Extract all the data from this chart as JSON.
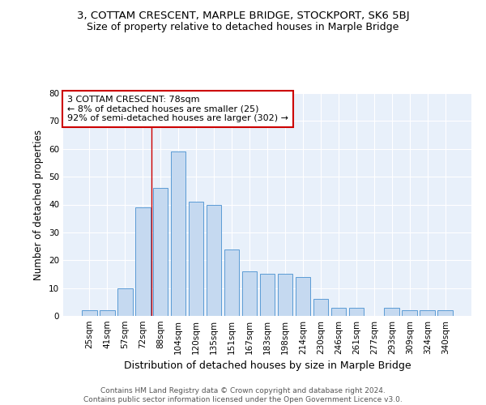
{
  "title": "3, COTTAM CRESCENT, MARPLE BRIDGE, STOCKPORT, SK6 5BJ",
  "subtitle": "Size of property relative to detached houses in Marple Bridge",
  "xlabel": "Distribution of detached houses by size in Marple Bridge",
  "ylabel": "Number of detached properties",
  "footer_line1": "Contains HM Land Registry data © Crown copyright and database right 2024.",
  "footer_line2": "Contains public sector information licensed under the Open Government Licence v3.0.",
  "categories": [
    "25sqm",
    "41sqm",
    "57sqm",
    "72sqm",
    "88sqm",
    "104sqm",
    "120sqm",
    "135sqm",
    "151sqm",
    "167sqm",
    "183sqm",
    "198sqm",
    "214sqm",
    "230sqm",
    "246sqm",
    "261sqm",
    "277sqm",
    "293sqm",
    "309sqm",
    "324sqm",
    "340sqm"
  ],
  "values": [
    2,
    2,
    10,
    39,
    46,
    59,
    41,
    40,
    24,
    16,
    15,
    15,
    14,
    6,
    3,
    3,
    0,
    3,
    2,
    2,
    2
  ],
  "bar_color": "#c5d9f0",
  "bar_edge_color": "#5b9bd5",
  "background_color": "#e8f0fa",
  "grid_color": "#ffffff",
  "annotation_text": "3 COTTAM CRESCENT: 78sqm\n← 8% of detached houses are smaller (25)\n92% of semi-detached houses are larger (302) →",
  "annotation_box_color": "#ffffff",
  "annotation_box_edge_color": "#cc0000",
  "vline_x": 3.5,
  "vline_color": "#cc0000",
  "ylim": [
    0,
    80
  ],
  "yticks": [
    0,
    10,
    20,
    30,
    40,
    50,
    60,
    70,
    80
  ],
  "title_fontsize": 9.5,
  "subtitle_fontsize": 9,
  "xlabel_fontsize": 9,
  "ylabel_fontsize": 8.5,
  "tick_fontsize": 7.5,
  "annotation_fontsize": 8,
  "footer_fontsize": 6.5
}
